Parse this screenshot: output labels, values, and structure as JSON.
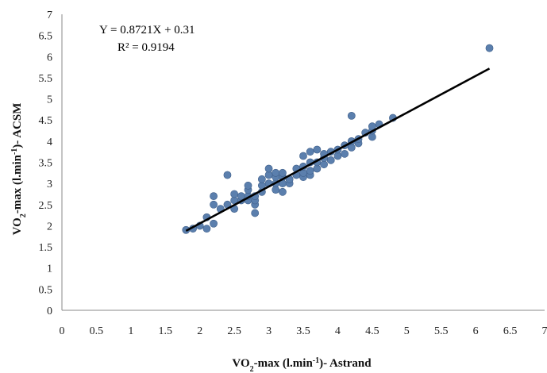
{
  "chart_data": {
    "type": "scatter",
    "title": "",
    "xlabel": "VO₂-max (l.min⁻¹)- Astrand",
    "ylabel": "VO₂-max (l.min⁻¹)- ACSM",
    "xlim": [
      0,
      7
    ],
    "ylim": [
      0,
      7
    ],
    "x_ticks": [
      "0",
      "0.5",
      "1",
      "1.5",
      "2",
      "2.5",
      "3",
      "3.5",
      "4",
      "4.5",
      "5",
      "5.5",
      "6",
      "6.5",
      "7"
    ],
    "y_ticks": [
      "0",
      "0.5",
      "1",
      "1.5",
      "2",
      "2.5",
      "3",
      "3.5",
      "4",
      "4.5",
      "5",
      "5.5",
      "6",
      "6.5",
      "7"
    ],
    "grid": false,
    "legend": "none",
    "colors": {
      "points": "#5b7fad",
      "trendline": "#000000",
      "axis": "#888888"
    },
    "annotations": {
      "equation": "Y = 0.8721X + 0.31",
      "r_squared": "R² = 0.9194"
    },
    "trendline": {
      "slope": 0.8721,
      "intercept": 0.31,
      "x_range": [
        1.8,
        6.2
      ]
    },
    "points": [
      [
        1.8,
        1.9
      ],
      [
        1.9,
        1.93
      ],
      [
        2.0,
        2.0
      ],
      [
        2.1,
        1.93
      ],
      [
        2.1,
        2.2
      ],
      [
        2.2,
        2.05
      ],
      [
        2.2,
        2.5
      ],
      [
        2.2,
        2.7
      ],
      [
        2.3,
        2.4
      ],
      [
        2.4,
        2.5
      ],
      [
        2.4,
        3.2
      ],
      [
        2.5,
        2.4
      ],
      [
        2.5,
        2.6
      ],
      [
        2.5,
        2.75
      ],
      [
        2.6,
        2.6
      ],
      [
        2.6,
        2.7
      ],
      [
        2.7,
        2.6
      ],
      [
        2.7,
        2.7
      ],
      [
        2.7,
        2.85
      ],
      [
        2.7,
        2.95
      ],
      [
        2.8,
        2.5
      ],
      [
        2.8,
        2.3
      ],
      [
        2.8,
        2.6
      ],
      [
        2.8,
        2.7
      ],
      [
        2.9,
        2.8
      ],
      [
        2.9,
        2.95
      ],
      [
        2.9,
        3.1
      ],
      [
        3.0,
        3.0
      ],
      [
        3.0,
        3.2
      ],
      [
        3.0,
        3.35
      ],
      [
        3.1,
        2.85
      ],
      [
        3.1,
        3.0
      ],
      [
        3.1,
        3.15
      ],
      [
        3.1,
        3.25
      ],
      [
        3.2,
        2.8
      ],
      [
        3.2,
        3.0
      ],
      [
        3.2,
        3.15
      ],
      [
        3.2,
        3.25
      ],
      [
        3.3,
        3.0
      ],
      [
        3.3,
        3.1
      ],
      [
        3.4,
        3.2
      ],
      [
        3.4,
        3.35
      ],
      [
        3.5,
        3.15
      ],
      [
        3.5,
        3.25
      ],
      [
        3.5,
        3.4
      ],
      [
        3.5,
        3.65
      ],
      [
        3.6,
        3.2
      ],
      [
        3.6,
        3.3
      ],
      [
        3.6,
        3.5
      ],
      [
        3.6,
        3.75
      ],
      [
        3.7,
        3.35
      ],
      [
        3.7,
        3.5
      ],
      [
        3.7,
        3.8
      ],
      [
        3.8,
        3.45
      ],
      [
        3.8,
        3.6
      ],
      [
        3.8,
        3.7
      ],
      [
        3.9,
        3.55
      ],
      [
        3.9,
        3.75
      ],
      [
        4.0,
        3.65
      ],
      [
        4.0,
        3.8
      ],
      [
        4.1,
        3.7
      ],
      [
        4.1,
        3.9
      ],
      [
        4.2,
        3.85
      ],
      [
        4.2,
        4.0
      ],
      [
        4.2,
        4.6
      ],
      [
        4.3,
        3.95
      ],
      [
        4.3,
        4.05
      ],
      [
        4.4,
        4.2
      ],
      [
        4.5,
        4.1
      ],
      [
        4.5,
        4.25
      ],
      [
        4.5,
        4.35
      ],
      [
        4.6,
        4.4
      ],
      [
        4.8,
        4.55
      ],
      [
        6.2,
        6.2
      ]
    ]
  }
}
